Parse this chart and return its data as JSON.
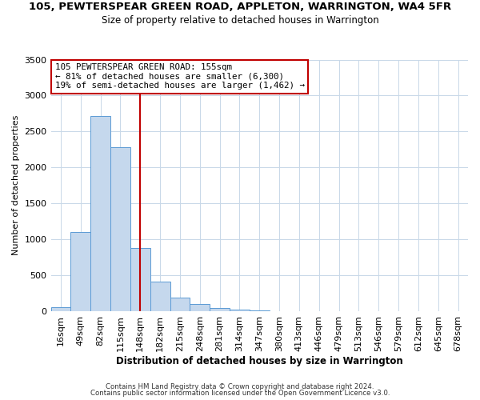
{
  "title_line1": "105, PEWTERSPEAR GREEN ROAD, APPLETON, WARRINGTON, WA4 5FR",
  "title_line2": "Size of property relative to detached houses in Warrington",
  "xlabel": "Distribution of detached houses by size in Warrington",
  "ylabel": "Number of detached properties",
  "bar_labels": [
    "16sqm",
    "49sqm",
    "82sqm",
    "115sqm",
    "148sqm",
    "182sqm",
    "215sqm",
    "248sqm",
    "281sqm",
    "314sqm",
    "347sqm",
    "380sqm",
    "413sqm",
    "446sqm",
    "479sqm",
    "513sqm",
    "546sqm",
    "579sqm",
    "612sqm",
    "645sqm",
    "678sqm"
  ],
  "bar_values": [
    50,
    1100,
    2720,
    2280,
    880,
    415,
    185,
    95,
    45,
    22,
    10,
    5,
    2,
    0,
    0,
    0,
    0,
    0,
    0,
    0,
    0
  ],
  "bar_color": "#c5d8ed",
  "bar_edgecolor": "#5b9bd5",
  "vline_x": 4.0,
  "vline_color": "#c00000",
  "annotation_line1": "105 PEWTERSPEAR GREEN ROAD: 155sqm",
  "annotation_line2": "← 81% of detached houses are smaller (6,300)",
  "annotation_line3": "19% of semi-detached houses are larger (1,462) →",
  "box_edgecolor": "#c00000",
  "ylim": [
    0,
    3500
  ],
  "yticks": [
    0,
    500,
    1000,
    1500,
    2000,
    2500,
    3000,
    3500
  ],
  "footnote1": "Contains HM Land Registry data © Crown copyright and database right 2024.",
  "footnote2": "Contains public sector information licensed under the Open Government Licence v3.0.",
  "background_color": "#ffffff",
  "grid_color": "#c8d8e8"
}
